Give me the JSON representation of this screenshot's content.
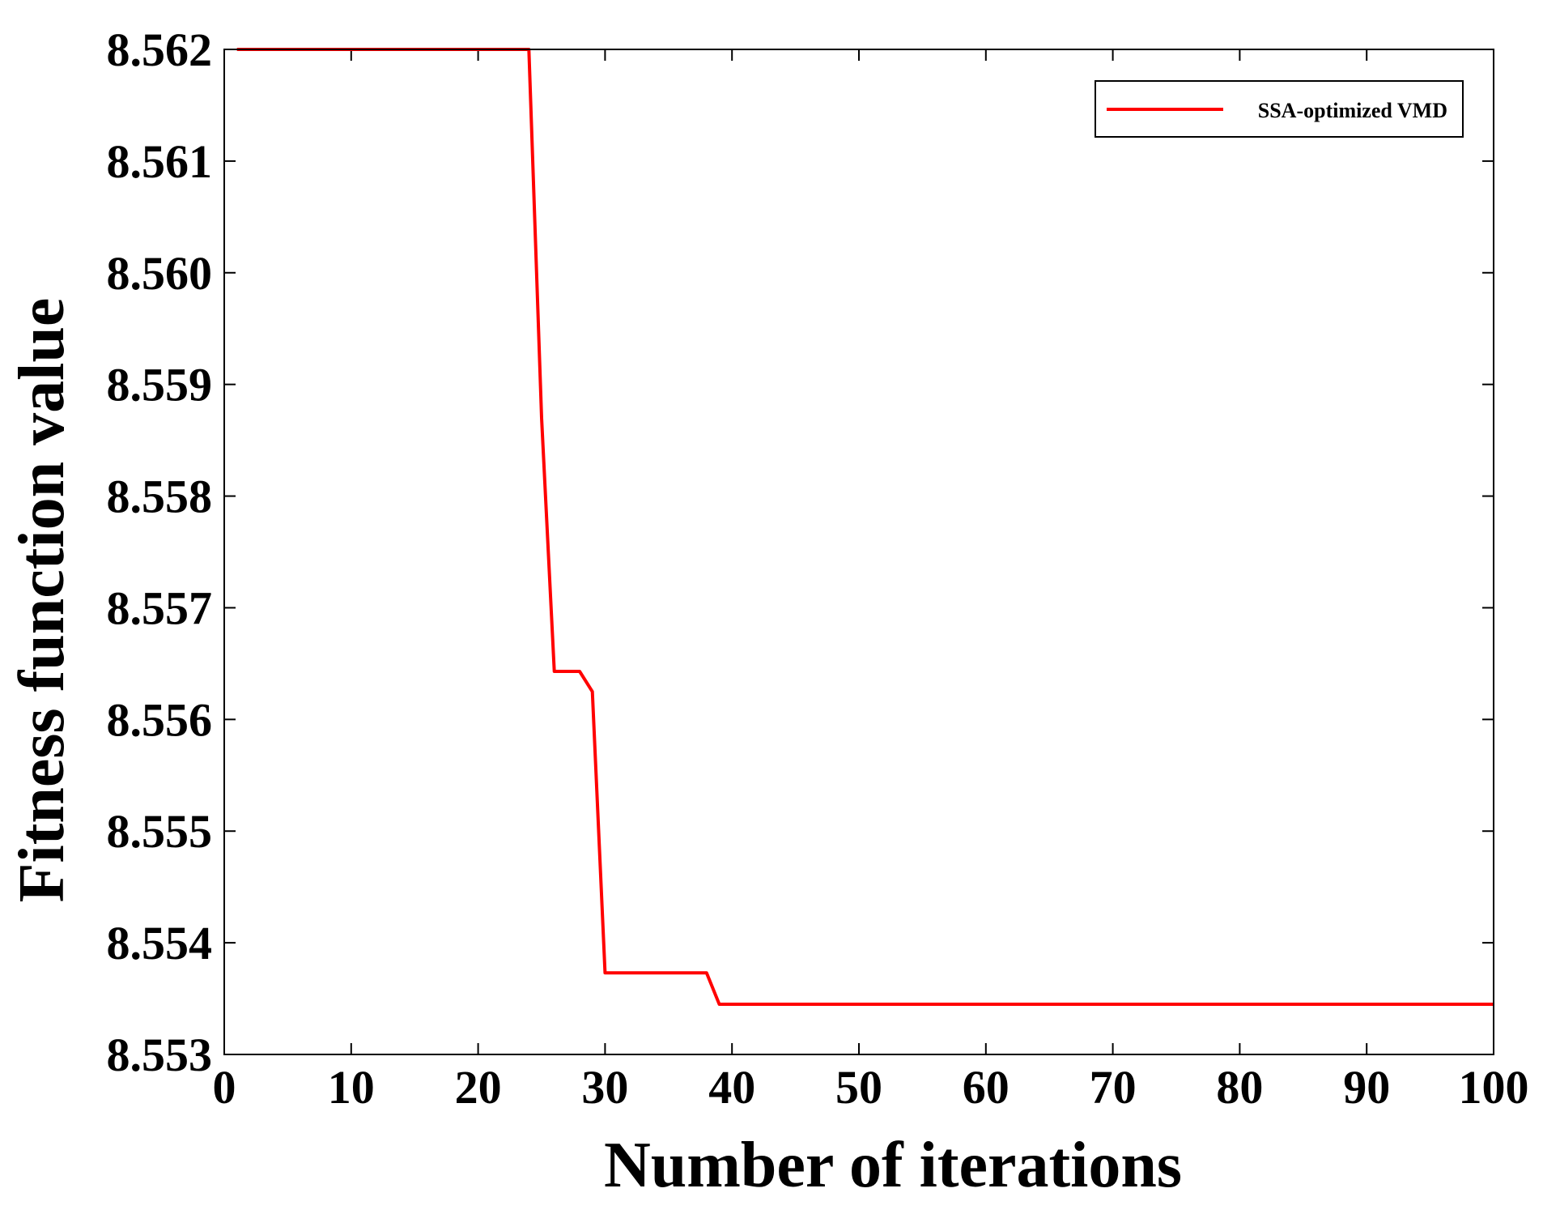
{
  "chart_data": {
    "type": "line",
    "xlabel": "Number of iterations",
    "ylabel": "Fitness function value",
    "xlim": [
      0,
      100
    ],
    "ylim": [
      8.553,
      8.562
    ],
    "xticks": [
      0,
      10,
      20,
      30,
      40,
      50,
      60,
      70,
      80,
      90,
      100
    ],
    "yticks": [
      8.553,
      8.554,
      8.555,
      8.556,
      8.557,
      8.558,
      8.559,
      8.56,
      8.561,
      8.562
    ],
    "ytick_labels": [
      "8.553",
      "8.554",
      "8.555",
      "8.556",
      "8.557",
      "8.558",
      "8.559",
      "8.560",
      "8.561",
      "8.562"
    ],
    "grid": false,
    "legend_position": "top-right",
    "series": [
      {
        "name": "SSA-optimized VMD",
        "color": "#ff0000",
        "x": [
          1,
          24,
          25,
          26,
          27,
          28,
          29,
          30,
          31,
          37,
          38,
          39,
          100
        ],
        "y": [
          8.562,
          8.562,
          8.5587,
          8.55643,
          8.55643,
          8.55643,
          8.55625,
          8.55373,
          8.55373,
          8.55373,
          8.55373,
          8.55345,
          8.55345
        ]
      }
    ]
  }
}
